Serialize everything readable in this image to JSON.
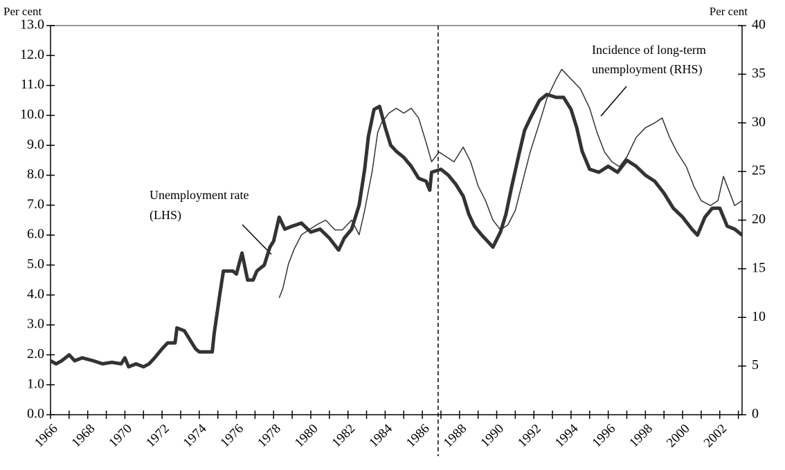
{
  "chart_data": {
    "type": "line",
    "y_label": "Per cent",
    "y2_label": "Per cent",
    "xlim": [
      1966,
      2003.2
    ],
    "xticks": [
      1966,
      1968,
      1970,
      1972,
      1974,
      1976,
      1978,
      1980,
      1982,
      1984,
      1986,
      1988,
      1990,
      1992,
      1994,
      1996,
      1998,
      2000,
      2002
    ],
    "xminorticks": [
      1967,
      1969,
      1971,
      1973,
      1975,
      1977,
      1979,
      1981,
      1983,
      1985,
      1987,
      1989,
      1991,
      1993,
      1995,
      1997,
      1999,
      2001,
      2003
    ],
    "ylim": [
      0,
      13
    ],
    "yticks": [
      {
        "value": 0,
        "label": "0.0"
      },
      {
        "value": 1,
        "label": "1.0"
      },
      {
        "value": 2,
        "label": "2.0"
      },
      {
        "value": 3,
        "label": "3.0"
      },
      {
        "value": 4,
        "label": "4.0"
      },
      {
        "value": 5,
        "label": "5.0"
      },
      {
        "value": 6,
        "label": "6.0"
      },
      {
        "value": 7,
        "label": "7.0"
      },
      {
        "value": 8,
        "label": "8.0"
      },
      {
        "value": 9,
        "label": "9.0"
      },
      {
        "value": 10,
        "label": "10.0"
      },
      {
        "value": 11,
        "label": "11.0"
      },
      {
        "value": 12,
        "label": "12.0"
      },
      {
        "value": 13,
        "label": "13.0"
      }
    ],
    "y2lim": [
      0,
      40
    ],
    "y2ticks": [
      0,
      5,
      10,
      15,
      20,
      25,
      30,
      35,
      40
    ],
    "grid": false,
    "vline": 1986.85,
    "annotations": [
      "Unemployment rate",
      "(LHS)",
      "Incidence of long-term",
      "unemployment (RHS)"
    ],
    "series": [
      {
        "name": "Unemployment rate (LHS)",
        "color": "#333333",
        "width": 5,
        "x": [
          1966.0,
          1966.3,
          1966.6,
          1967.0,
          1967.3,
          1967.7,
          1968.3,
          1968.8,
          1969.3,
          1969.8,
          1970.0,
          1970.2,
          1970.6,
          1971.0,
          1971.3,
          1971.6,
          1972.0,
          1972.3,
          1972.7,
          1972.8,
          1973.2,
          1973.5,
          1973.8,
          1974.0,
          1974.7,
          1974.8,
          1975.1,
          1975.3,
          1975.8,
          1976.0,
          1976.3,
          1976.6,
          1976.9,
          1977.1,
          1977.5,
          1977.8,
          1978.0,
          1978.3,
          1978.6,
          1979.0,
          1979.5,
          1980.0,
          1980.5,
          1981.0,
          1981.5,
          1981.8,
          1982.2,
          1982.6,
          1982.9,
          1983.1,
          1983.4,
          1983.7,
          1984.0,
          1984.3,
          1984.6,
          1985.0,
          1985.4,
          1985.8,
          1986.2,
          1986.4,
          1986.5,
          1987.0,
          1987.4,
          1987.8,
          1988.2,
          1988.5,
          1988.8,
          1989.2,
          1989.5,
          1989.8,
          1990.2,
          1990.5,
          1990.8,
          1991.2,
          1991.5,
          1991.8,
          1992.3,
          1992.7,
          1993.2,
          1993.6,
          1994.0,
          1994.3,
          1994.6,
          1995.0,
          1995.5,
          1996.0,
          1996.5,
          1997.0,
          1997.5,
          1998.0,
          1998.5,
          1999.0,
          1999.5,
          2000.0,
          2000.5,
          2000.8,
          2001.2,
          2001.6,
          2002.0,
          2002.4,
          2002.8,
          2003.2
        ],
        "values": [
          1.8,
          1.7,
          1.8,
          2.0,
          1.8,
          1.9,
          1.8,
          1.7,
          1.75,
          1.7,
          1.9,
          1.6,
          1.7,
          1.6,
          1.7,
          1.9,
          2.2,
          2.4,
          2.4,
          2.9,
          2.8,
          2.5,
          2.2,
          2.1,
          2.1,
          2.7,
          4.0,
          4.8,
          4.8,
          4.7,
          5.4,
          4.5,
          4.5,
          4.8,
          5.0,
          5.6,
          5.8,
          6.6,
          6.2,
          6.3,
          6.4,
          6.1,
          6.2,
          5.9,
          5.5,
          5.9,
          6.2,
          7.0,
          8.2,
          9.3,
          10.2,
          10.3,
          9.6,
          9.0,
          8.8,
          8.6,
          8.3,
          7.9,
          7.8,
          7.5,
          8.1,
          8.2,
          8.0,
          7.7,
          7.3,
          6.7,
          6.3,
          6.0,
          5.8,
          5.6,
          6.1,
          6.7,
          7.6,
          8.7,
          9.5,
          9.9,
          10.5,
          10.7,
          10.6,
          10.6,
          10.2,
          9.6,
          8.8,
          8.2,
          8.1,
          8.3,
          8.1,
          8.5,
          8.3,
          8.0,
          7.8,
          7.4,
          6.9,
          6.6,
          6.2,
          6.0,
          6.6,
          6.9,
          6.9,
          6.3,
          6.2,
          6.0
        ]
      },
      {
        "name": "Incidence of long-term unemployment (RHS)",
        "color": "#333333",
        "width": 1.5,
        "axis": "y2",
        "x": [
          1978.3,
          1978.5,
          1978.8,
          1979.1,
          1979.5,
          1979.9,
          1980.3,
          1980.8,
          1981.3,
          1981.7,
          1982.2,
          1982.6,
          1982.9,
          1983.3,
          1983.6,
          1983.8,
          1984.2,
          1984.6,
          1985.0,
          1985.4,
          1985.8,
          1986.2,
          1986.5,
          1986.9,
          1987.3,
          1987.7,
          1988.2,
          1988.6,
          1989.0,
          1989.4,
          1989.8,
          1990.2,
          1990.6,
          1991.0,
          1991.4,
          1991.8,
          1992.3,
          1992.7,
          1993.2,
          1993.5,
          1994.0,
          1994.5,
          1995.0,
          1995.4,
          1995.8,
          1996.2,
          1996.6,
          1997.0,
          1997.5,
          1998.0,
          1998.5,
          1998.9,
          1999.3,
          1999.7,
          2000.2,
          2000.6,
          2001.0,
          2001.5,
          2001.9,
          2002.2,
          2002.5,
          2002.8,
          2003.2
        ],
        "values": [
          12,
          13,
          15.5,
          17,
          18.5,
          19,
          19.5,
          20,
          19,
          19,
          20,
          18.5,
          21,
          25,
          29,
          30,
          31,
          31.5,
          31,
          31.5,
          30.5,
          28,
          26,
          27,
          26.5,
          26,
          27.5,
          26,
          23.5,
          22,
          20,
          19,
          19.5,
          21,
          24,
          27,
          30,
          32.5,
          34.5,
          35.5,
          34.5,
          33.5,
          31.5,
          29,
          27,
          26,
          25.5,
          26.5,
          28.5,
          29.5,
          30,
          30.5,
          28.5,
          27,
          25.5,
          23.5,
          22,
          21.5,
          22,
          24.5,
          23,
          21.5,
          22
        ]
      }
    ]
  }
}
